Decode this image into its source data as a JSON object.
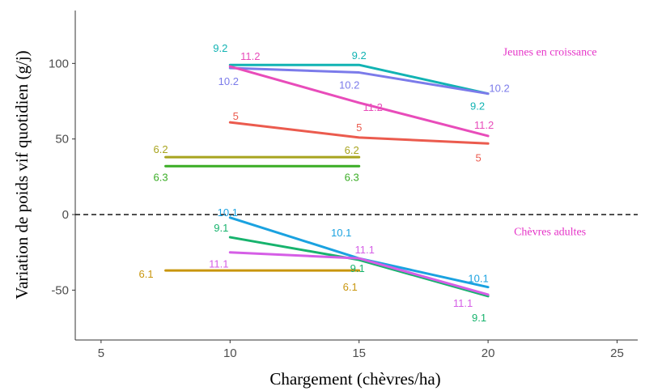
{
  "chart_data": {
    "type": "line",
    "xlabel": "Chargement (chèvres/ha)",
    "ylabel": "Variation de poids vif quotidien (g/j)",
    "xlim": [
      4,
      25.8
    ],
    "ylim": [
      -83,
      135
    ],
    "x_ticks": [
      5,
      10,
      15,
      20,
      25
    ],
    "y_ticks": [
      -50,
      0,
      50,
      100
    ],
    "grid": false,
    "reference_line": {
      "y": 0,
      "style": "dashed"
    },
    "annotations": [
      {
        "text": "Jeunes en croissance",
        "x": 22.4,
        "y": 108
      },
      {
        "text": "Chèvres adultes",
        "x": 22.4,
        "y": -11
      }
    ],
    "series": [
      {
        "name": "9.2",
        "color": "#11b3b3",
        "x": [
          10,
          15,
          20
        ],
        "y": [
          99,
          99,
          80
        ]
      },
      {
        "name": "10.2",
        "color": "#7b7bea",
        "x": [
          10,
          15,
          20
        ],
        "y": [
          97,
          94,
          80
        ]
      },
      {
        "name": "11.2",
        "color": "#e84cba",
        "x": [
          10,
          15,
          20
        ],
        "y": [
          98,
          74,
          52
        ]
      },
      {
        "name": "5",
        "color": "#eb5b4e",
        "x": [
          10,
          15,
          20
        ],
        "y": [
          61,
          51,
          47
        ]
      },
      {
        "name": "6.2",
        "color": "#a8a41e",
        "x": [
          7.5,
          15
        ],
        "y": [
          38,
          38
        ]
      },
      {
        "name": "6.3",
        "color": "#3aad25",
        "x": [
          7.5,
          15
        ],
        "y": [
          32,
          32
        ]
      },
      {
        "name": "10.1",
        "color": "#1aa2e0",
        "x": [
          10,
          15,
          20
        ],
        "y": [
          -2,
          -29,
          -48
        ]
      },
      {
        "name": "9.1",
        "color": "#17b36d",
        "x": [
          10,
          15,
          20
        ],
        "y": [
          -15,
          -30,
          -54
        ]
      },
      {
        "name": "11.1",
        "color": "#d55ee6",
        "x": [
          10,
          15,
          20
        ],
        "y": [
          -25,
          -29,
          -53
        ]
      },
      {
        "name": "6.1",
        "color": "#c9960e",
        "x": [
          7.5,
          15
        ],
        "y": [
          -37,
          -37
        ]
      }
    ]
  }
}
